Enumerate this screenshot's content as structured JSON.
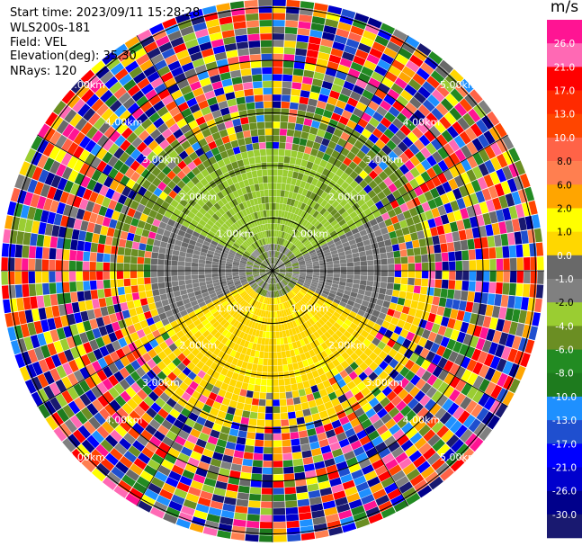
{
  "info": {
    "start_time": "Start time: 2023/09/11 15:28:28",
    "instrument": "WLS200s-181",
    "field": "Field: VEL",
    "elevation": "Elevation(deg): 35.30",
    "nrays": "NRays: 120"
  },
  "chart_data": {
    "type": "heatmap",
    "projection": "polar PPI",
    "field": "VEL",
    "nrays": 120,
    "range_ring_labels": [
      "1.00km",
      "2.00km",
      "3.00km",
      "4.00km",
      "5.00km"
    ],
    "range_label_positions": [
      "NW",
      "NE",
      "SW",
      "SE"
    ],
    "colorbar": {
      "unit": "m/s",
      "ticks": [
        "26.0",
        "21.0",
        "17.0",
        "13.0",
        "10.0",
        "8.0",
        "6.0",
        "2.0",
        "1.0",
        "0.0",
        "-1.0",
        "-2.0",
        "-4.0",
        "-6.0",
        "-8.0",
        "-10.0",
        "-13.0",
        "-17.0",
        "-21.0",
        "-26.0",
        "-30.0"
      ],
      "colors": [
        "#ff1493",
        "#ff69b4",
        "#ff0000",
        "#ff2a00",
        "#ff4500",
        "#ff6347",
        "#ff7f50",
        "#ffa500",
        "#ffff00",
        "#ffd700",
        "#696969",
        "#808080",
        "#9acd32",
        "#6b8e23",
        "#228b22",
        "#1e7b1e",
        "#1e90ff",
        "#1f4fcf",
        "#0000ff",
        "#0000cd",
        "#00008b",
        "#191970"
      ]
    },
    "inner_zone": {
      "near_zero_range_km": 2.3,
      "positive_sector": "south",
      "negative_sector": "north"
    }
  }
}
